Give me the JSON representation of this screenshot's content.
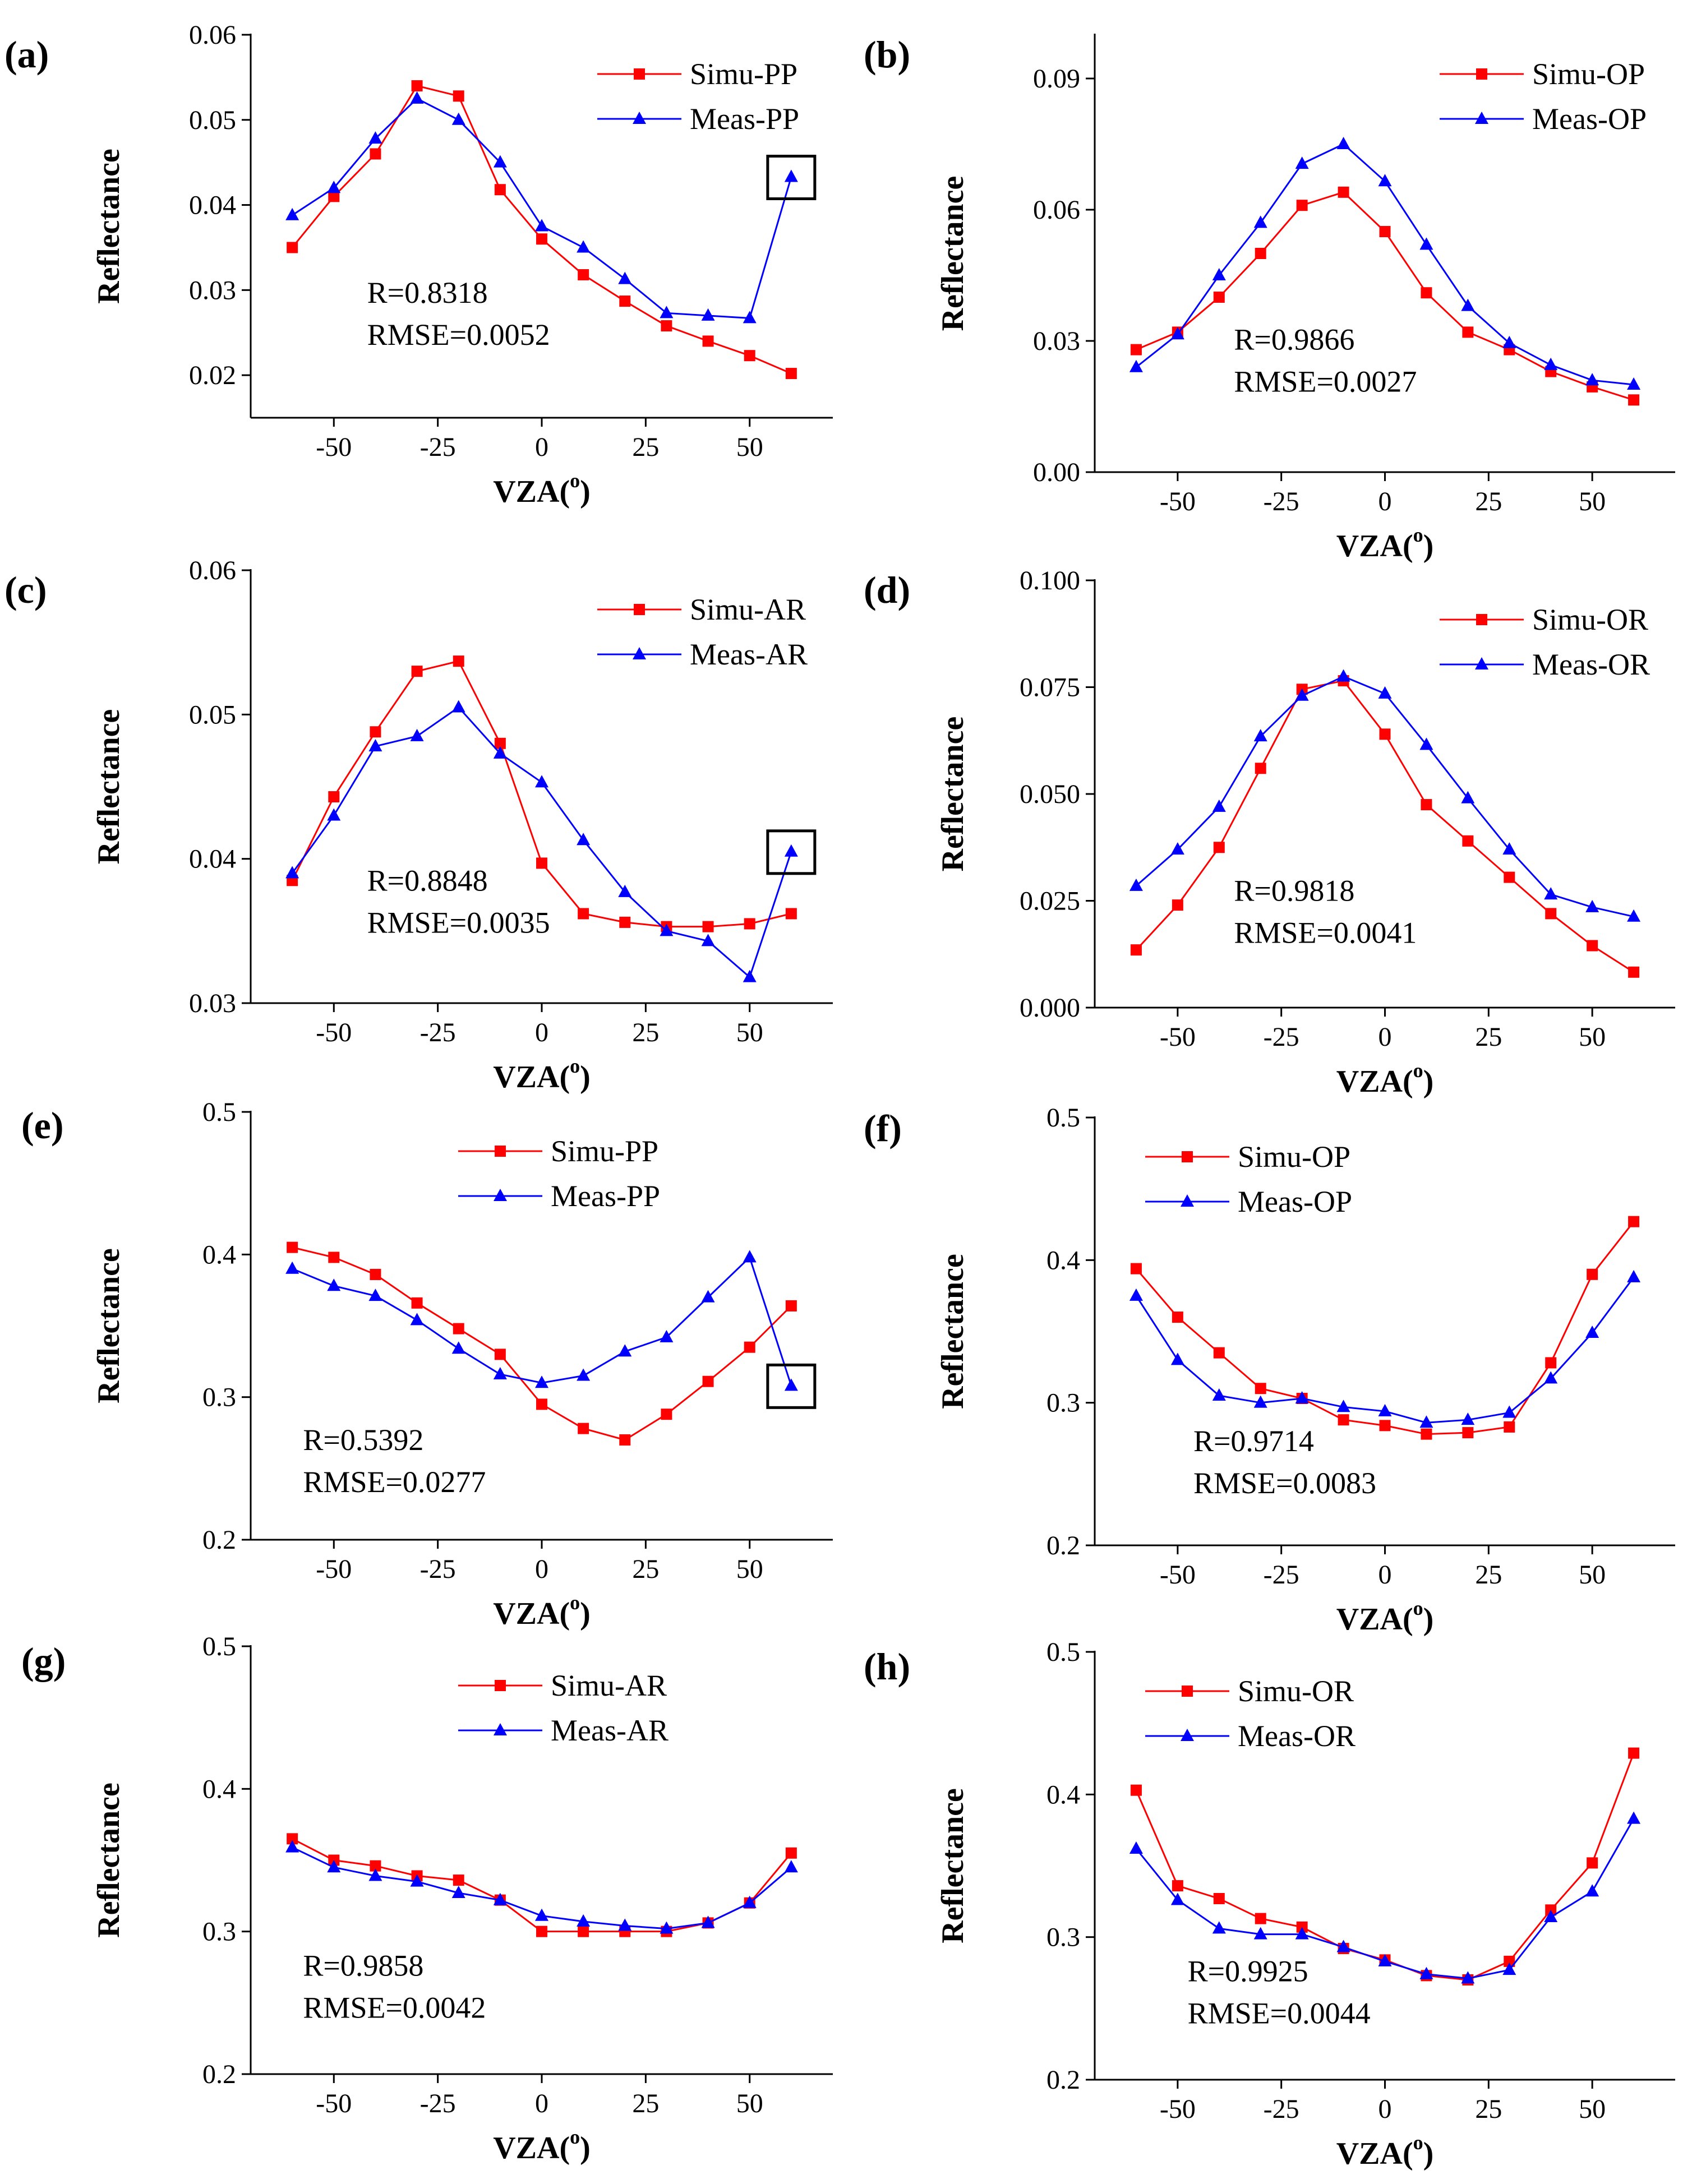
{
  "colors": {
    "simu": "#ff0000",
    "meas": "#0000ff",
    "axis": "#000000"
  },
  "chart_data": [
    {
      "type": "line",
      "label": "(a)",
      "xlabel": "VZA",
      "xlabel_sup": "o",
      "ylabel": "Reflectance",
      "xlim": [
        -70,
        70
      ],
      "ylim": [
        0.015,
        0.06
      ],
      "xticks": [
        -50,
        -25,
        0,
        25,
        50
      ],
      "xtick_labels": [
        "-50",
        "-25",
        "0",
        "25",
        "50"
      ],
      "yticks": [
        0.02,
        0.03,
        0.04,
        0.05,
        0.06
      ],
      "ytick_labels": [
        "0.02",
        "0.03",
        "0.04",
        "0.05",
        "0.06"
      ],
      "x": [
        -60,
        -50,
        -40,
        -30,
        -20,
        -10,
        0,
        10,
        20,
        30,
        40,
        50,
        60
      ],
      "series": [
        {
          "name": "Simu-PP",
          "marker": "square",
          "values": [
            0.035,
            0.041,
            0.046,
            0.054,
            0.0528,
            0.0418,
            0.036,
            0.0318,
            0.0287,
            0.0258,
            0.024,
            0.0223,
            0.0202
          ]
        },
        {
          "name": "Meas-PP",
          "marker": "triangle",
          "values": [
            0.0388,
            0.042,
            0.0478,
            0.0525,
            0.05,
            0.045,
            0.0375,
            0.035,
            0.0313,
            0.0273,
            0.027,
            0.0267,
            0.0433
          ]
        }
      ],
      "highlight_index": 12,
      "stats": {
        "r": "R=0.8318",
        "rmse": "RMSE=0.0052"
      }
    },
    {
      "type": "line",
      "label": "(b)",
      "xlabel": "VZA",
      "xlabel_sup": "o",
      "ylabel": "Reflectance",
      "xlim": [
        -70,
        70
      ],
      "ylim": [
        0.0,
        0.1
      ],
      "xticks": [
        -50,
        -25,
        0,
        25,
        50
      ],
      "xtick_labels": [
        "-50",
        "-25",
        "0",
        "25",
        "50"
      ],
      "yticks": [
        0.0,
        0.03,
        0.06,
        0.09
      ],
      "ytick_labels": [
        "0.00",
        "0.03",
        "0.06",
        "0.09"
      ],
      "x": [
        -60,
        -50,
        -40,
        -30,
        -20,
        -10,
        0,
        10,
        20,
        30,
        40,
        50,
        60
      ],
      "series": [
        {
          "name": "Simu-OP",
          "marker": "square",
          "values": [
            0.028,
            0.032,
            0.04,
            0.05,
            0.061,
            0.064,
            0.055,
            0.041,
            0.032,
            0.028,
            0.023,
            0.0195,
            0.0165
          ]
        },
        {
          "name": "Meas-OP",
          "marker": "triangle",
          "values": [
            0.024,
            0.0315,
            0.045,
            0.057,
            0.0705,
            0.075,
            0.0665,
            0.052,
            0.038,
            0.0295,
            0.0245,
            0.021,
            0.02
          ]
        }
      ],
      "stats": {
        "r": "R=0.9866",
        "rmse": "RMSE=0.0027"
      }
    },
    {
      "type": "line",
      "label": "(c)",
      "xlabel": "VZA",
      "xlabel_sup": "o",
      "ylabel": "Reflectance",
      "xlim": [
        -70,
        70
      ],
      "ylim": [
        0.03,
        0.06
      ],
      "xticks": [
        -50,
        -25,
        0,
        25,
        50
      ],
      "xtick_labels": [
        "-50",
        "-25",
        "0",
        "25",
        "50"
      ],
      "yticks": [
        0.03,
        0.04,
        0.05,
        0.06
      ],
      "ytick_labels": [
        "0.03",
        "0.04",
        "0.05",
        "0.06"
      ],
      "x": [
        -60,
        -50,
        -40,
        -30,
        -20,
        -10,
        0,
        10,
        20,
        30,
        40,
        50,
        60
      ],
      "series": [
        {
          "name": "Simu-AR",
          "marker": "square",
          "values": [
            0.0385,
            0.0443,
            0.0488,
            0.053,
            0.0537,
            0.048,
            0.0397,
            0.0362,
            0.0356,
            0.0353,
            0.0353,
            0.0355,
            0.0362
          ]
        },
        {
          "name": "Meas-AR",
          "marker": "triangle",
          "values": [
            0.039,
            0.043,
            0.0478,
            0.0485,
            0.0505,
            0.0473,
            0.0453,
            0.0413,
            0.0377,
            0.035,
            0.0343,
            0.0318,
            0.0405
          ]
        }
      ],
      "highlight_index": 12,
      "stats": {
        "r": "R=0.8848",
        "rmse": "RMSE=0.0035"
      }
    },
    {
      "type": "line",
      "label": "(d)",
      "xlabel": "VZA",
      "xlabel_sup": "o",
      "ylabel": "Reflectance",
      "xlim": [
        -70,
        70
      ],
      "ylim": [
        0.0,
        0.1
      ],
      "xticks": [
        -50,
        -25,
        0,
        25,
        50
      ],
      "xtick_labels": [
        "-50",
        "-25",
        "0",
        "25",
        "50"
      ],
      "yticks": [
        0.0,
        0.025,
        0.05,
        0.075,
        0.1
      ],
      "ytick_labels": [
        "0.000",
        "0.025",
        "0.050",
        "0.075",
        "0.100"
      ],
      "x": [
        -60,
        -50,
        -40,
        -30,
        -20,
        -10,
        0,
        10,
        20,
        30,
        40,
        50,
        60
      ],
      "series": [
        {
          "name": "Simu-OR",
          "marker": "square",
          "values": [
            0.0135,
            0.024,
            0.0375,
            0.056,
            0.0745,
            0.0765,
            0.064,
            0.0475,
            0.039,
            0.0305,
            0.022,
            0.0145,
            0.0083
          ]
        },
        {
          "name": "Meas-OR",
          "marker": "triangle",
          "values": [
            0.0285,
            0.037,
            0.047,
            0.0635,
            0.073,
            0.0775,
            0.0735,
            0.0615,
            0.049,
            0.037,
            0.0265,
            0.0235,
            0.0213
          ]
        }
      ],
      "stats": {
        "r": "R=0.9818",
        "rmse": "RMSE=0.0041"
      }
    },
    {
      "type": "line",
      "label": "(e)",
      "xlabel": "VZA",
      "xlabel_sup": "o",
      "ylabel": "Reflectance",
      "xlim": [
        -70,
        70
      ],
      "ylim": [
        0.2,
        0.5
      ],
      "xticks": [
        -50,
        -25,
        0,
        25,
        50
      ],
      "xtick_labels": [
        "-50",
        "-25",
        "0",
        "25",
        "50"
      ],
      "yticks": [
        0.2,
        0.3,
        0.4,
        0.5
      ],
      "ytick_labels": [
        "0.2",
        "0.3",
        "0.4",
        "0.5"
      ],
      "x": [
        -60,
        -50,
        -40,
        -30,
        -20,
        -10,
        0,
        10,
        20,
        30,
        40,
        50,
        60
      ],
      "series": [
        {
          "name": "Simu-PP",
          "marker": "square",
          "values": [
            0.405,
            0.398,
            0.386,
            0.366,
            0.348,
            0.33,
            0.295,
            0.278,
            0.27,
            0.288,
            0.311,
            0.335,
            0.364
          ]
        },
        {
          "name": "Meas-PP",
          "marker": "triangle",
          "values": [
            0.39,
            0.378,
            0.371,
            0.354,
            0.334,
            0.316,
            0.31,
            0.315,
            0.332,
            0.342,
            0.37,
            0.398,
            0.308
          ]
        }
      ],
      "highlight_index": 12,
      "stats": {
        "r": "R=0.5392",
        "rmse": "RMSE=0.0277"
      }
    },
    {
      "type": "line",
      "label": "(f)",
      "xlabel": "VZA",
      "xlabel_sup": "o",
      "ylabel": "Reflectance",
      "xlim": [
        -70,
        70
      ],
      "ylim": [
        0.2,
        0.5
      ],
      "xticks": [
        -50,
        -25,
        0,
        25,
        50
      ],
      "xtick_labels": [
        "-50",
        "-25",
        "0",
        "25",
        "50"
      ],
      "yticks": [
        0.2,
        0.3,
        0.4,
        0.5
      ],
      "ytick_labels": [
        "0.2",
        "0.3",
        "0.4",
        "0.5"
      ],
      "x": [
        -60,
        -50,
        -40,
        -30,
        -20,
        -10,
        0,
        10,
        20,
        30,
        40,
        50,
        60
      ],
      "series": [
        {
          "name": "Simu-OP",
          "marker": "square",
          "values": [
            0.394,
            0.36,
            0.335,
            0.31,
            0.303,
            0.288,
            0.284,
            0.278,
            0.279,
            0.283,
            0.328,
            0.39,
            0.427
          ]
        },
        {
          "name": "Meas-OP",
          "marker": "triangle",
          "values": [
            0.375,
            0.33,
            0.305,
            0.3,
            0.303,
            0.297,
            0.294,
            0.286,
            0.288,
            0.293,
            0.317,
            0.349,
            0.388
          ]
        }
      ],
      "stats": {
        "r": "R=0.9714",
        "rmse": "RMSE=0.0083"
      }
    },
    {
      "type": "line",
      "label": "(g)",
      "xlabel": "VZA",
      "xlabel_sup": "o",
      "ylabel": "Reflectance",
      "xlim": [
        -70,
        70
      ],
      "ylim": [
        0.2,
        0.5
      ],
      "xticks": [
        -50,
        -25,
        0,
        25,
        50
      ],
      "xtick_labels": [
        "-50",
        "-25",
        "0",
        "25",
        "50"
      ],
      "yticks": [
        0.2,
        0.3,
        0.4,
        0.5
      ],
      "ytick_labels": [
        "0.2",
        "0.3",
        "0.4",
        "0.5"
      ],
      "x": [
        -60,
        -50,
        -40,
        -30,
        -20,
        -10,
        0,
        10,
        20,
        30,
        40,
        50,
        60
      ],
      "series": [
        {
          "name": "Simu-AR",
          "marker": "square",
          "values": [
            0.365,
            0.35,
            0.346,
            0.339,
            0.336,
            0.322,
            0.3,
            0.3,
            0.3,
            0.3,
            0.306,
            0.32,
            0.355
          ]
        },
        {
          "name": "Meas-AR",
          "marker": "triangle",
          "values": [
            0.359,
            0.345,
            0.339,
            0.335,
            0.327,
            0.322,
            0.311,
            0.307,
            0.304,
            0.302,
            0.306,
            0.32,
            0.345
          ]
        }
      ],
      "stats": {
        "r": "R=0.9858",
        "rmse": "RMSE=0.0042"
      }
    },
    {
      "type": "line",
      "label": "(h)",
      "xlabel": "VZA",
      "xlabel_sup": "o",
      "ylabel": "Reflectance",
      "xlim": [
        -70,
        70
      ],
      "ylim": [
        0.2,
        0.5
      ],
      "xticks": [
        -50,
        -25,
        0,
        25,
        50
      ],
      "xtick_labels": [
        "-50",
        "-25",
        "0",
        "25",
        "50"
      ],
      "yticks": [
        0.2,
        0.3,
        0.4,
        0.5
      ],
      "ytick_labels": [
        "0.2",
        "0.3",
        "0.4",
        "0.5"
      ],
      "x": [
        -60,
        -50,
        -40,
        -30,
        -20,
        -10,
        0,
        10,
        20,
        30,
        40,
        50,
        60
      ],
      "series": [
        {
          "name": "Simu-OR",
          "marker": "square",
          "values": [
            0.403,
            0.336,
            0.327,
            0.313,
            0.307,
            0.292,
            0.284,
            0.273,
            0.27,
            0.283,
            0.319,
            0.352,
            0.429
          ]
        },
        {
          "name": "Meas-OR",
          "marker": "triangle",
          "values": [
            0.362,
            0.326,
            0.306,
            0.302,
            0.302,
            0.293,
            0.283,
            0.274,
            0.271,
            0.277,
            0.314,
            0.332,
            0.383
          ]
        }
      ],
      "stats": {
        "r": "R=0.9925",
        "rmse": "RMSE=0.0044"
      }
    }
  ]
}
